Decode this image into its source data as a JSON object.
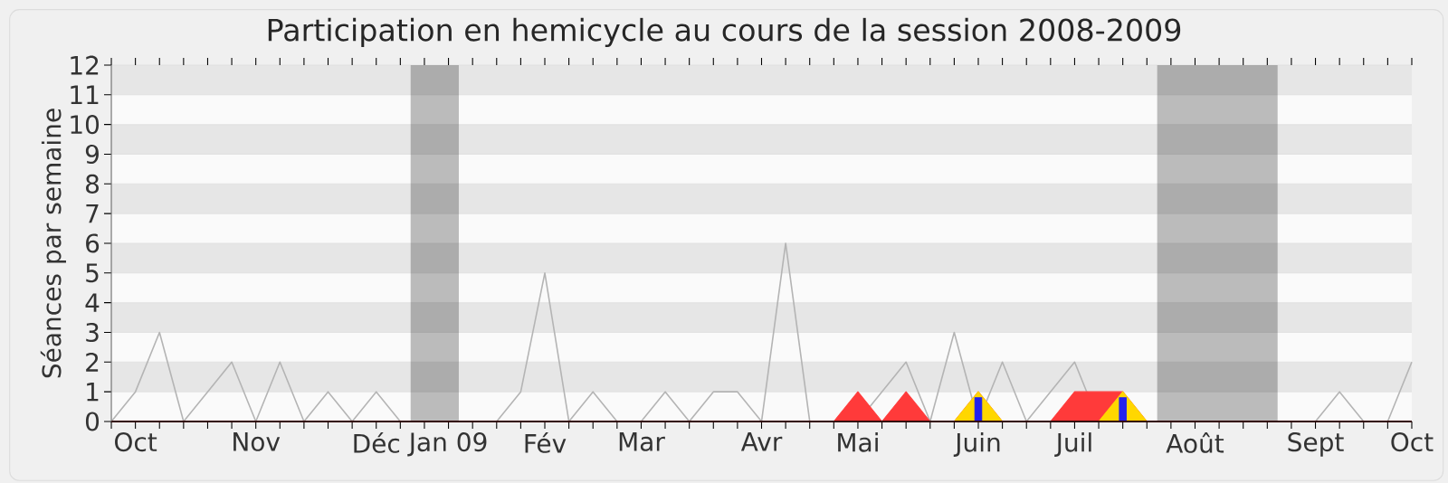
{
  "chart_data": {
    "type": "line",
    "title": "Participation en hemicycle au cours de la session 2008-2009",
    "ylabel": "Séances par semaine",
    "xlim": [
      "2008-09-29",
      "2009-10-12"
    ],
    "ylim": [
      0,
      12
    ],
    "yticks": [
      0,
      1,
      2,
      3,
      4,
      5,
      6,
      7,
      8,
      9,
      10,
      11,
      12
    ],
    "xticks": [
      {
        "value": "2008-09-29",
        "label": null
      },
      {
        "value": "2008-10-06",
        "label": "Oct"
      },
      {
        "value": "2008-10-13",
        "label": null
      },
      {
        "value": "2008-10-20",
        "label": null
      },
      {
        "value": "2008-10-27",
        "label": null
      },
      {
        "value": "2008-11-03",
        "label": null
      },
      {
        "value": "2008-11-10",
        "label": "Nov"
      },
      {
        "value": "2008-11-17",
        "label": null
      },
      {
        "value": "2008-11-24",
        "label": null
      },
      {
        "value": "2008-12-01",
        "label": null
      },
      {
        "value": "2008-12-08",
        "label": null
      },
      {
        "value": "2008-12-15",
        "label": "Déc"
      },
      {
        "value": "2008-12-22",
        "label": null
      },
      {
        "value": "2008-12-29",
        "label": null
      },
      {
        "value": "2009-01-05",
        "label": "Jan 09"
      },
      {
        "value": "2009-01-12",
        "label": null
      },
      {
        "value": "2009-01-19",
        "label": null
      },
      {
        "value": "2009-01-26",
        "label": null
      },
      {
        "value": "2009-02-02",
        "label": "Fév"
      },
      {
        "value": "2009-02-09",
        "label": null
      },
      {
        "value": "2009-02-16",
        "label": null
      },
      {
        "value": "2009-02-23",
        "label": null
      },
      {
        "value": "2009-03-02",
        "label": "Mar"
      },
      {
        "value": "2009-03-09",
        "label": null
      },
      {
        "value": "2009-03-16",
        "label": null
      },
      {
        "value": "2009-03-23",
        "label": null
      },
      {
        "value": "2009-03-30",
        "label": null
      },
      {
        "value": "2009-04-06",
        "label": "Avr"
      },
      {
        "value": "2009-04-13",
        "label": null
      },
      {
        "value": "2009-04-20",
        "label": null
      },
      {
        "value": "2009-04-27",
        "label": null
      },
      {
        "value": "2009-05-04",
        "label": "Mai"
      },
      {
        "value": "2009-05-11",
        "label": null
      },
      {
        "value": "2009-05-18",
        "label": null
      },
      {
        "value": "2009-05-25",
        "label": null
      },
      {
        "value": "2009-06-01",
        "label": null
      },
      {
        "value": "2009-06-08",
        "label": "Juin"
      },
      {
        "value": "2009-06-15",
        "label": null
      },
      {
        "value": "2009-06-22",
        "label": null
      },
      {
        "value": "2009-06-29",
        "label": null
      },
      {
        "value": "2009-07-06",
        "label": "Juil"
      },
      {
        "value": "2009-07-13",
        "label": null
      },
      {
        "value": "2009-07-20",
        "label": null
      },
      {
        "value": "2009-07-27",
        "label": null
      },
      {
        "value": "2009-08-03",
        "label": null
      },
      {
        "value": "2009-08-10",
        "label": "Août"
      },
      {
        "value": "2009-08-17",
        "label": null
      },
      {
        "value": "2009-08-24",
        "label": null
      },
      {
        "value": "2009-08-31",
        "label": null
      },
      {
        "value": "2009-09-07",
        "label": null
      },
      {
        "value": "2009-09-14",
        "label": "Sept"
      },
      {
        "value": "2009-09-21",
        "label": null
      },
      {
        "value": "2009-09-28",
        "label": null
      },
      {
        "value": "2009-10-05",
        "label": null
      },
      {
        "value": "2009-10-12",
        "label": "Oct"
      }
    ],
    "grid": "y",
    "marker": "none",
    "bands": [
      {
        "axis": "x",
        "from": "2008-12-25",
        "to": "2009-01-08",
        "color": "#bbbbbb"
      },
      {
        "axis": "x",
        "from": "2009-07-30",
        "to": "2009-09-03",
        "color": "#bbbbbb"
      }
    ],
    "x": [
      "2008-09-29",
      "2008-10-06",
      "2008-10-13",
      "2008-10-20",
      "2008-10-27",
      "2008-11-03",
      "2008-11-10",
      "2008-11-17",
      "2008-11-24",
      "2008-12-01",
      "2008-12-08",
      "2008-12-15",
      "2008-12-22",
      "2008-12-29",
      "2009-01-05",
      "2009-01-12",
      "2009-01-19",
      "2009-01-26",
      "2009-02-02",
      "2009-02-09",
      "2009-02-16",
      "2009-02-23",
      "2009-03-02",
      "2009-03-09",
      "2009-03-16",
      "2009-03-23",
      "2009-03-30",
      "2009-04-06",
      "2009-04-13",
      "2009-04-20",
      "2009-04-27",
      "2009-05-04",
      "2009-05-11",
      "2009-05-18",
      "2009-05-25",
      "2009-06-01",
      "2009-06-08",
      "2009-06-15",
      "2009-06-22",
      "2009-06-29",
      "2009-07-06",
      "2009-07-13",
      "2009-07-20",
      "2009-07-27",
      "2009-08-03",
      "2009-08-10",
      "2009-08-17",
      "2009-08-24",
      "2009-08-31",
      "2009-09-07",
      "2009-09-14",
      "2009-09-21",
      "2009-09-28",
      "2009-10-05",
      "2009-10-12"
    ],
    "series": [
      {
        "color": "#b4b4b4",
        "values": [
          0,
          1,
          3,
          0,
          1,
          2,
          0,
          2,
          0,
          1,
          0,
          1,
          0,
          null,
          null,
          null,
          0,
          1,
          5,
          0,
          1,
          0,
          0,
          1,
          0,
          1,
          1,
          0,
          6,
          0,
          0,
          0,
          1,
          2,
          0,
          3,
          0,
          2,
          0,
          1,
          2,
          0,
          0,
          null,
          null,
          null,
          null,
          null,
          null,
          0,
          0,
          1,
          0,
          0,
          2
        ]
      },
      {
        "type": "area",
        "color": "#ff3a3a",
        "x": [
          "2009-04-27",
          "2009-05-04",
          "2009-05-11",
          "2009-05-18",
          "2009-05-25",
          "2009-06-01",
          "2009-06-08",
          "2009-06-15",
          "2009-06-22",
          "2009-06-29",
          "2009-07-06",
          "2009-07-13",
          "2009-07-20",
          "2009-07-27"
        ],
        "values": [
          0,
          1,
          0,
          1,
          0,
          0,
          1,
          0,
          0,
          0,
          1,
          1,
          1,
          0
        ]
      },
      {
        "type": "area",
        "color": "#ffd700",
        "x": [
          "2009-06-01",
          "2009-06-08",
          "2009-06-15",
          "2009-06-22",
          "2009-06-29",
          "2009-07-06",
          "2009-07-13",
          "2009-07-20",
          "2009-07-27"
        ],
        "values": [
          0,
          1,
          0,
          0,
          0,
          0,
          0,
          1,
          0
        ]
      },
      {
        "type": "bar",
        "color": "#2222ee",
        "x": [
          "2009-06-08",
          "2009-07-20"
        ],
        "values": [
          0.8,
          0.8
        ]
      }
    ]
  }
}
